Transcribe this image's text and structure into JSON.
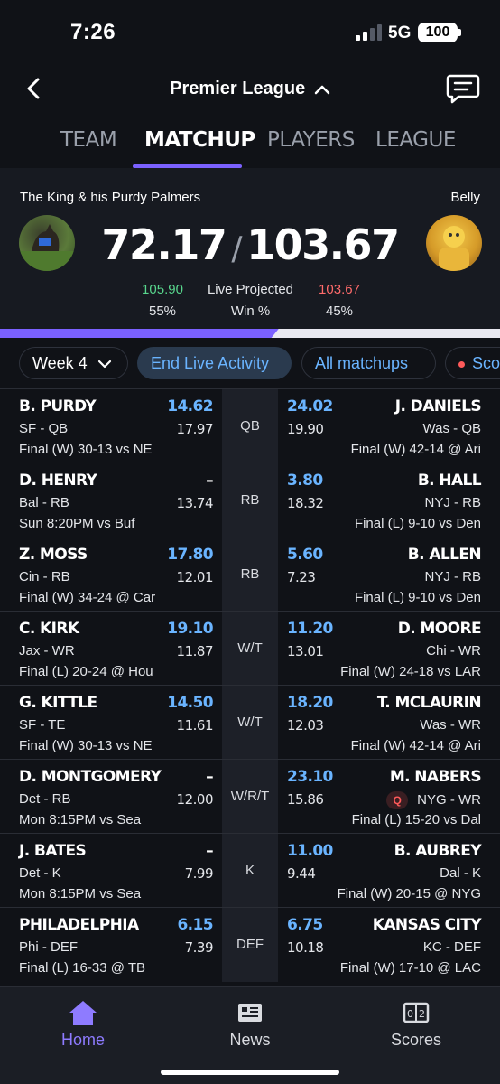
{
  "status_bar": {
    "time": "7:26",
    "network": "5G",
    "battery": "100"
  },
  "header": {
    "title": "Premier League",
    "back_icon": "chevron-left-icon",
    "chat_icon": "chat-bubble-icon"
  },
  "tabs": [
    {
      "label": "TEAM",
      "active": false
    },
    {
      "label": "MATCHUP",
      "active": true
    },
    {
      "label": "PLAYERS",
      "active": false
    },
    {
      "label": "LEAGUE",
      "active": false
    }
  ],
  "scoreboard": {
    "left_team": "The King & his Purdy Palmers",
    "right_team": "Belly",
    "left_score": "72.17",
    "right_score": "103.67",
    "left_projected": "105.90",
    "right_projected": "103.67",
    "projected_label": "Live Projected",
    "left_win": "55%",
    "right_win": "45%",
    "win_label": "Win %",
    "win_probability_left": 0.55
  },
  "filters": {
    "week": "Week 4",
    "end_live": "End Live Activity",
    "all_matchups": "All matchups",
    "scores": "Scores"
  },
  "rows": [
    {
      "pos": "QB",
      "l": {
        "name": "B. PURDY",
        "pts": "14.62",
        "sub": "SF - QB",
        "proj": "17.97",
        "game": "Final (W) 30-13 vs NE"
      },
      "r": {
        "name": "J. DANIELS",
        "pts": "24.02",
        "sub": "Was - QB",
        "proj": "19.90",
        "game": "Final (W) 42-14 @ Ari"
      }
    },
    {
      "pos": "RB",
      "l": {
        "name": "D. HENRY",
        "pts": "–",
        "sub": "Bal - RB",
        "proj": "13.74",
        "game": "Sun 8:20PM vs Buf"
      },
      "r": {
        "name": "B. HALL",
        "pts": "3.80",
        "sub": "NYJ - RB",
        "proj": "18.32",
        "game": "Final (L) 9-10 vs Den"
      }
    },
    {
      "pos": "RB",
      "l": {
        "name": "Z. MOSS",
        "pts": "17.80",
        "sub": "Cin - RB",
        "proj": "12.01",
        "game": "Final (W) 34-24 @ Car"
      },
      "r": {
        "name": "B. ALLEN",
        "pts": "5.60",
        "sub": "NYJ - RB",
        "proj": "7.23",
        "game": "Final (L) 9-10 vs Den"
      }
    },
    {
      "pos": "W/T",
      "l": {
        "name": "C. KIRK",
        "pts": "19.10",
        "sub": "Jax - WR",
        "proj": "11.87",
        "game": "Final (L) 20-24 @ Hou"
      },
      "r": {
        "name": "D. MOORE",
        "pts": "11.20",
        "sub": "Chi - WR",
        "proj": "13.01",
        "game": "Final (W) 24-18 vs LAR"
      }
    },
    {
      "pos": "W/T",
      "l": {
        "name": "G. KITTLE",
        "pts": "14.50",
        "sub": "SF - TE",
        "proj": "11.61",
        "game": "Final (W) 30-13 vs NE"
      },
      "r": {
        "name": "T. MCLAURIN",
        "pts": "18.20",
        "sub": "Was - WR",
        "proj": "12.03",
        "game": "Final (W) 42-14 @ Ari"
      }
    },
    {
      "pos": "W/R/T",
      "l": {
        "name": "D. MONTGOMERY",
        "pts": "–",
        "sub": "Det - RB",
        "proj": "12.00",
        "game": "Mon 8:15PM vs Sea"
      },
      "r": {
        "name": "M. NABERS",
        "pts": "23.10",
        "sub": "NYG - WR",
        "proj": "15.86",
        "game": "Final (L) 15-20 vs Dal",
        "badge": "Q"
      }
    },
    {
      "pos": "K",
      "l": {
        "name": "J. BATES",
        "pts": "–",
        "sub": "Det - K",
        "proj": "7.99",
        "game": "Mon 8:15PM vs Sea"
      },
      "r": {
        "name": "B. AUBREY",
        "pts": "11.00",
        "sub": "Dal - K",
        "proj": "9.44",
        "game": "Final (W) 20-15 @ NYG"
      }
    },
    {
      "pos": "DEF",
      "l": {
        "name": "PHILADELPHIA",
        "pts": "6.15",
        "sub": "Phi - DEF",
        "proj": "7.39",
        "game": "Final (L) 16-33 @ TB"
      },
      "r": {
        "name": "KANSAS CITY",
        "pts": "6.75",
        "sub": "KC - DEF",
        "proj": "10.18",
        "game": "Final (W) 17-10 @ LAC"
      }
    }
  ],
  "bottom_nav": [
    {
      "label": "Home",
      "icon": "home-icon",
      "active": true
    },
    {
      "label": "News",
      "icon": "news-icon",
      "active": false
    },
    {
      "label": "Scores",
      "icon": "scoreboard-icon",
      "active": false
    }
  ],
  "colors": {
    "accent": "#7b61ff",
    "points": "#6ab4ff",
    "positive": "#58d68d",
    "negative": "#ff6b6b",
    "background": "#101217"
  }
}
